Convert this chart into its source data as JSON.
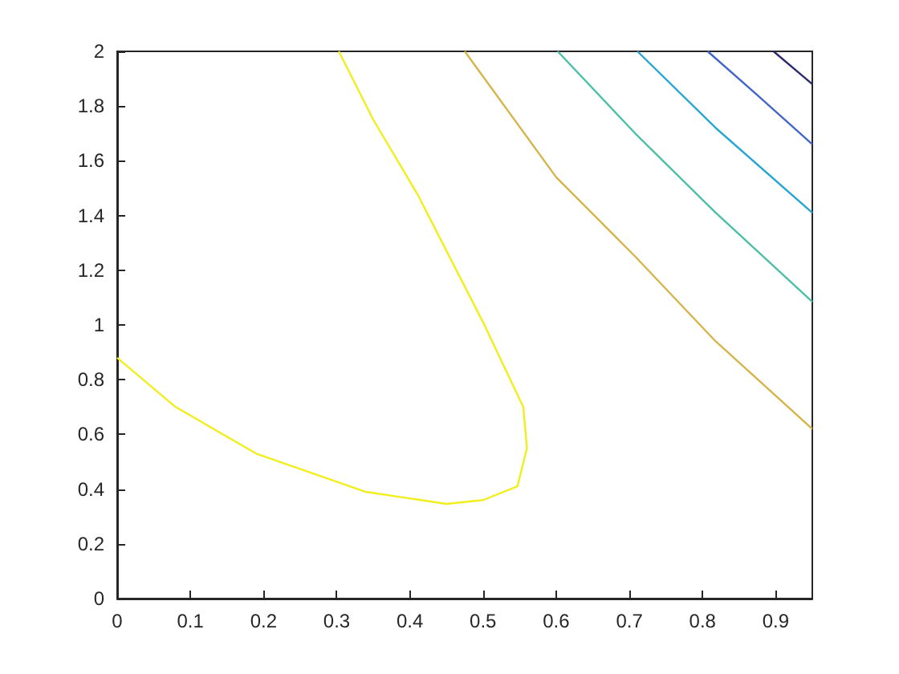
{
  "chart_data": {
    "type": "line",
    "grid": false,
    "marker": "none",
    "xlim": [
      0,
      0.95
    ],
    "ylim": [
      0,
      2
    ],
    "xticks": [
      0,
      0.1,
      0.2,
      0.3,
      0.4,
      0.5,
      0.6,
      0.7,
      0.8,
      0.9
    ],
    "yticks": [
      0,
      0.2,
      0.4,
      0.6,
      0.8,
      1,
      1.2,
      1.4,
      1.6,
      1.8,
      2
    ],
    "series": [
      {
        "color": "#f2ee1c",
        "x": [
          0,
          0.08,
          0.19,
          0.34,
          0.45,
          0.5,
          0.547,
          0.56,
          0.555,
          0.5,
          0.41,
          0.35,
          0.303
        ],
        "values": [
          0.88,
          0.7,
          0.53,
          0.39,
          0.346,
          0.36,
          0.41,
          0.55,
          0.7,
          1.01,
          1.48,
          1.75,
          2
        ]
      },
      {
        "color": "#d7b449",
        "x": [
          0.475,
          0.6,
          0.708,
          0.818,
          0.95
        ],
        "values": [
          2,
          1.54,
          1.25,
          0.94,
          0.62
        ]
      },
      {
        "color": "#4cbfa6",
        "x": [
          0.602,
          0.708,
          0.818,
          0.95
        ],
        "values": [
          2,
          1.7,
          1.41,
          1.085
        ]
      },
      {
        "color": "#27a6d3",
        "x": [
          0.711,
          0.818,
          0.95
        ],
        "values": [
          2,
          1.72,
          1.41
        ]
      },
      {
        "color": "#4366c8",
        "x": [
          0.807,
          0.875,
          0.95
        ],
        "values": [
          2,
          1.84,
          1.66
        ]
      },
      {
        "color": "#2b2b6e",
        "x": [
          0.897,
          0.95
        ],
        "values": [
          2,
          1.88
        ]
      }
    ]
  }
}
